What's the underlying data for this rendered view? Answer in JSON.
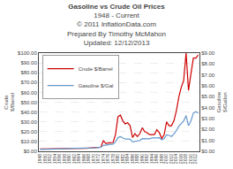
{
  "chart_data": {
    "type": "line",
    "title": "Gasoline vs Crude Oil Prices",
    "subtitle": [
      "1948 - Current",
      "© 2011 InflationData.com",
      "Prepared By Timothy McMahon",
      "Updated: 12/12/2013"
    ],
    "ylabel": [
      "Crude",
      "$/Barrel"
    ],
    "y2label": [
      "Gasoline",
      "$/Gallon"
    ],
    "x": [
      1948,
      1949,
      1950,
      1951,
      1952,
      1953,
      1954,
      1955,
      1956,
      1957,
      1958,
      1959,
      1960,
      1961,
      1962,
      1963,
      1964,
      1965,
      1966,
      1967,
      1968,
      1969,
      1970,
      1971,
      1972,
      1973,
      1974,
      1975,
      1976,
      1977,
      1978,
      1979,
      1980,
      1981,
      1982,
      1983,
      1984,
      1985,
      1986,
      1987,
      1988,
      1989,
      1990,
      1991,
      1992,
      1993,
      1994,
      1995,
      1996,
      1997,
      1998,
      1999,
      2000,
      2001,
      2002,
      2003,
      2004,
      2005,
      2006,
      2007,
      2008,
      2009,
      2010,
      2011,
      2012,
      2013
    ],
    "series": [
      {
        "name": "Crude $/Barrel",
        "color": "#cc0000",
        "axis": "y",
        "values": [
          2.5,
          2.5,
          2.5,
          2.6,
          2.6,
          2.7,
          2.8,
          2.8,
          2.8,
          3.1,
          3.0,
          3.0,
          2.9,
          2.9,
          2.9,
          2.9,
          2.9,
          2.9,
          2.9,
          3.0,
          3.2,
          3.3,
          3.4,
          3.6,
          3.5,
          4.2,
          11.0,
          8.0,
          8.5,
          9.0,
          9.0,
          17.0,
          35.0,
          37.0,
          31.0,
          28.0,
          29.0,
          26.0,
          14.0,
          18.0,
          15.0,
          18.0,
          24.0,
          20.0,
          19.0,
          17.0,
          17.0,
          17.0,
          22.0,
          19.0,
          13.0,
          17.0,
          30.0,
          26.0,
          26.0,
          31.0,
          41.0,
          55.0,
          65.0,
          72.0,
          100.0,
          62.0,
          79.0,
          95.0,
          95.0,
          98.0
        ]
      },
      {
        "name": "Gasoline $/Gal",
        "color": "#6699cc",
        "axis": "y2",
        "values": [
          0.18,
          0.18,
          0.18,
          0.19,
          0.19,
          0.2,
          0.2,
          0.21,
          0.22,
          0.24,
          0.24,
          0.25,
          0.25,
          0.25,
          0.25,
          0.25,
          0.25,
          0.26,
          0.27,
          0.27,
          0.28,
          0.29,
          0.31,
          0.33,
          0.33,
          0.37,
          0.54,
          0.57,
          0.59,
          0.63,
          0.66,
          0.86,
          1.25,
          1.35,
          1.22,
          1.12,
          1.13,
          1.1,
          0.86,
          0.91,
          0.9,
          0.99,
          1.16,
          1.14,
          1.11,
          1.15,
          1.23,
          1.21,
          1.22,
          1.24,
          1.05,
          1.17,
          1.51,
          1.46,
          1.36,
          1.59,
          1.89,
          2.3,
          2.59,
          2.79,
          3.27,
          2.35,
          2.78,
          3.52,
          3.63,
          3.5
        ]
      }
    ],
    "xlim": [
      1947.5,
      2013.5
    ],
    "xticks": [
      1948,
      1950,
      1952,
      1954,
      1956,
      1958,
      1960,
      1962,
      1964,
      1966,
      1968,
      1970,
      1972,
      1974,
      1976,
      1978,
      1980,
      1982,
      1984,
      1986,
      1988,
      1990,
      1992,
      1994,
      1996,
      1998,
      2000,
      2002,
      2004,
      2006,
      2008,
      2010,
      2012
    ],
    "ylim": [
      0,
      100
    ],
    "yticks": [
      {
        "value": 0,
        "label": "$0.00"
      },
      {
        "value": 10,
        "label": "$10.00"
      },
      {
        "value": 20,
        "label": "$20.00"
      },
      {
        "value": 30,
        "label": "$30.00"
      },
      {
        "value": 40,
        "label": "$40.00"
      },
      {
        "value": 50,
        "label": "$50.00"
      },
      {
        "value": 60,
        "label": "$60.00"
      },
      {
        "value": 70,
        "label": "$70.00"
      },
      {
        "value": 80,
        "label": "$80.00"
      },
      {
        "value": 90,
        "label": "$90.00"
      },
      {
        "value": 100,
        "label": "$100.00"
      }
    ],
    "y2lim": [
      0,
      9
    ],
    "y2ticks": [
      {
        "value": 0,
        "label": "$0.00"
      },
      {
        "value": 1,
        "label": "$1.00"
      },
      {
        "value": 2,
        "label": "$2.00"
      },
      {
        "value": 3,
        "label": "$3.00"
      },
      {
        "value": 4,
        "label": "$4.00"
      },
      {
        "value": 5,
        "label": "$5.00"
      },
      {
        "value": 6,
        "label": "$6.00"
      },
      {
        "value": 7,
        "label": "$7.00"
      },
      {
        "value": 8,
        "label": "$8.00"
      },
      {
        "value": 9,
        "label": "$9.00"
      }
    ],
    "grid": true,
    "legend": "upper left"
  }
}
